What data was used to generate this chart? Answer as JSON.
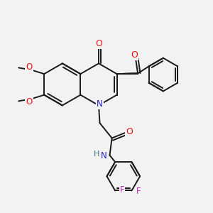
{
  "background_color": "#f2f2f2",
  "bond_color": "#1a1a1a",
  "atom_colors": {
    "O": "#ee1111",
    "N": "#2222cc",
    "H": "#337777",
    "F": "#cc22cc",
    "C": "#1a1a1a"
  },
  "figsize": [
    3.0,
    3.0
  ],
  "dpi": 100,
  "lw": 1.4
}
